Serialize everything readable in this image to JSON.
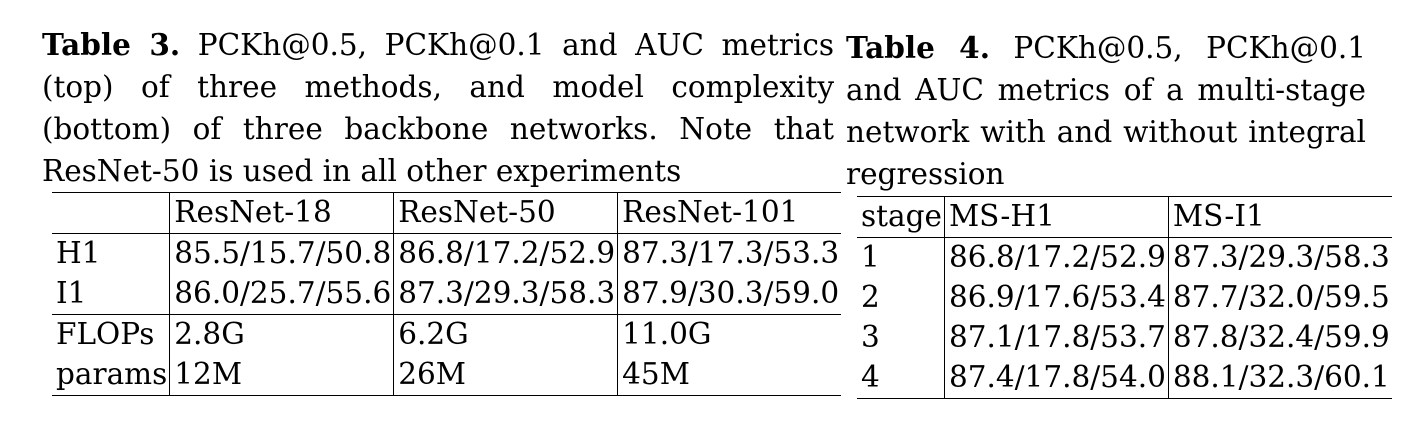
{
  "table3": {
    "label": "Table 3.",
    "caption": "PCKh@0.5, PCKh@0.1 and AUC metrics (top) of three methods, and model complexity (bottom) of three backbone networks. Note that ResNet-50 is used in all other experiments",
    "header": [
      "",
      "ResNet-18",
      "ResNet-50",
      "ResNet-101"
    ],
    "rows": [
      [
        "H1",
        "85.5/15.7/50.8",
        "86.8/17.2/52.9",
        "87.3/17.3/53.3"
      ],
      [
        "I1",
        "86.0/25.7/55.6",
        "87.3/29.3/58.3",
        "87.9/30.3/59.0"
      ],
      [
        "FLOPs",
        "2.8G",
        "6.2G",
        "11.0G"
      ],
      [
        "params",
        "12M",
        "26M",
        "45M"
      ]
    ]
  },
  "table4": {
    "label": "Table 4.",
    "caption": "PCKh@0.5, PCKh@0.1 and AUC metrics of a multi-stage network with and without integral regression",
    "header": [
      "stage",
      "MS-H1",
      "MS-I1"
    ],
    "rows": [
      [
        "1",
        "86.8/17.2/52.9",
        "87.3/29.3/58.3"
      ],
      [
        "2",
        "86.9/17.6/53.4",
        "87.7/32.0/59.5"
      ],
      [
        "3",
        "87.1/17.8/53.7",
        "87.8/32.4/59.9"
      ],
      [
        "4",
        "87.4/17.8/54.0",
        "88.1/32.3/60.1"
      ]
    ]
  }
}
